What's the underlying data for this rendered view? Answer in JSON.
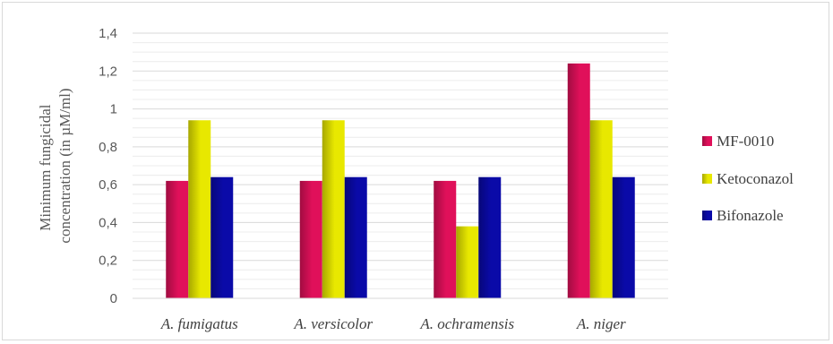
{
  "chart_data": {
    "type": "bar",
    "ylabel_lines": [
      "Minimum fungicidal",
      "concentration (in µM/ml)"
    ],
    "categories": [
      "A. fumigatus",
      "A. versicolor",
      "A. ochramensis",
      "A. niger"
    ],
    "series": [
      {
        "name": "MF-0010",
        "values": [
          0.62,
          0.62,
          0.62,
          1.24
        ],
        "color": "#e0105a"
      },
      {
        "name": "Ketoconazol",
        "values": [
          0.94,
          0.94,
          0.38,
          0.94
        ],
        "color": "#e8e800"
      },
      {
        "name": "Bifonazole",
        "values": [
          0.64,
          0.64,
          0.64,
          0.64
        ],
        "color": "#0a0aa8"
      }
    ],
    "ylim": [
      0,
      1.4
    ],
    "yticks": [
      "0",
      "0,2",
      "0,4",
      "0,6",
      "0,8",
      "1",
      "1,2",
      "1,4"
    ],
    "grid": true,
    "legend_position": "right"
  }
}
